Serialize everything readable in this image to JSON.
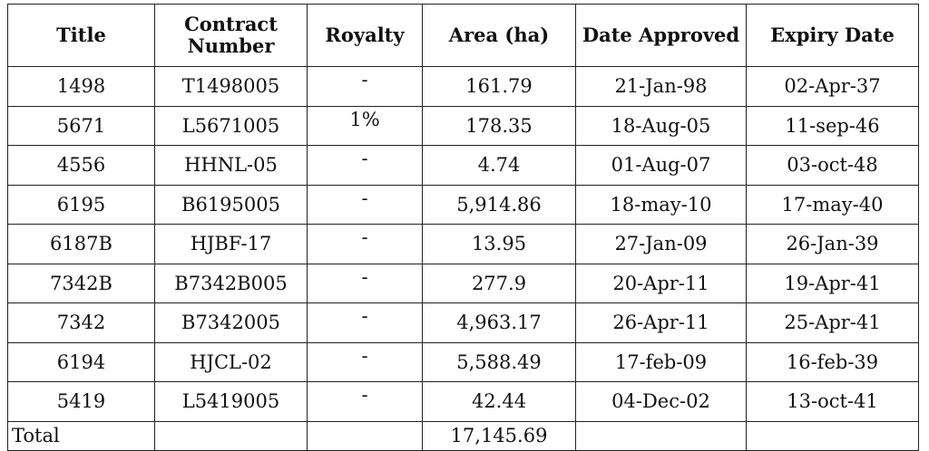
{
  "table": {
    "headers": [
      "Title",
      "Contract Number",
      "Royalty",
      "Area (ha)",
      "Date Approved",
      "Expiry Date"
    ],
    "rows": [
      [
        "1498",
        "T1498005",
        "-",
        "161.79",
        "21-Jan-98",
        "02-Apr-37"
      ],
      [
        "5671",
        "L5671005",
        "1%",
        "178.35",
        "18-Aug-05",
        "11-sep-46"
      ],
      [
        "4556",
        "HHNL-05",
        "-",
        "4.74",
        "01-Aug-07",
        "03-oct-48"
      ],
      [
        "6195",
        "B6195005",
        "-",
        "5,914.86",
        "18-may-10",
        "17-may-40"
      ],
      [
        "6187B",
        "HJBF-17",
        "-",
        "13.95",
        "27-Jan-09",
        "26-Jan-39"
      ],
      [
        "7342B",
        "B7342B005",
        "-",
        "277.9",
        "20-Apr-11",
        "19-Apr-41"
      ],
      [
        "7342",
        "B7342005",
        "-",
        "4,963.17",
        "26-Apr-11",
        "25-Apr-41"
      ],
      [
        "6194",
        "HJCL-02",
        "-",
        "5,588.49",
        "17-feb-09",
        "16-feb-39"
      ],
      [
        "5419",
        "L5419005",
        "-",
        "42.44",
        "04-Dec-02",
        "13-oct-41"
      ]
    ],
    "total": {
      "label": "Total",
      "area": "17,145.69"
    }
  }
}
